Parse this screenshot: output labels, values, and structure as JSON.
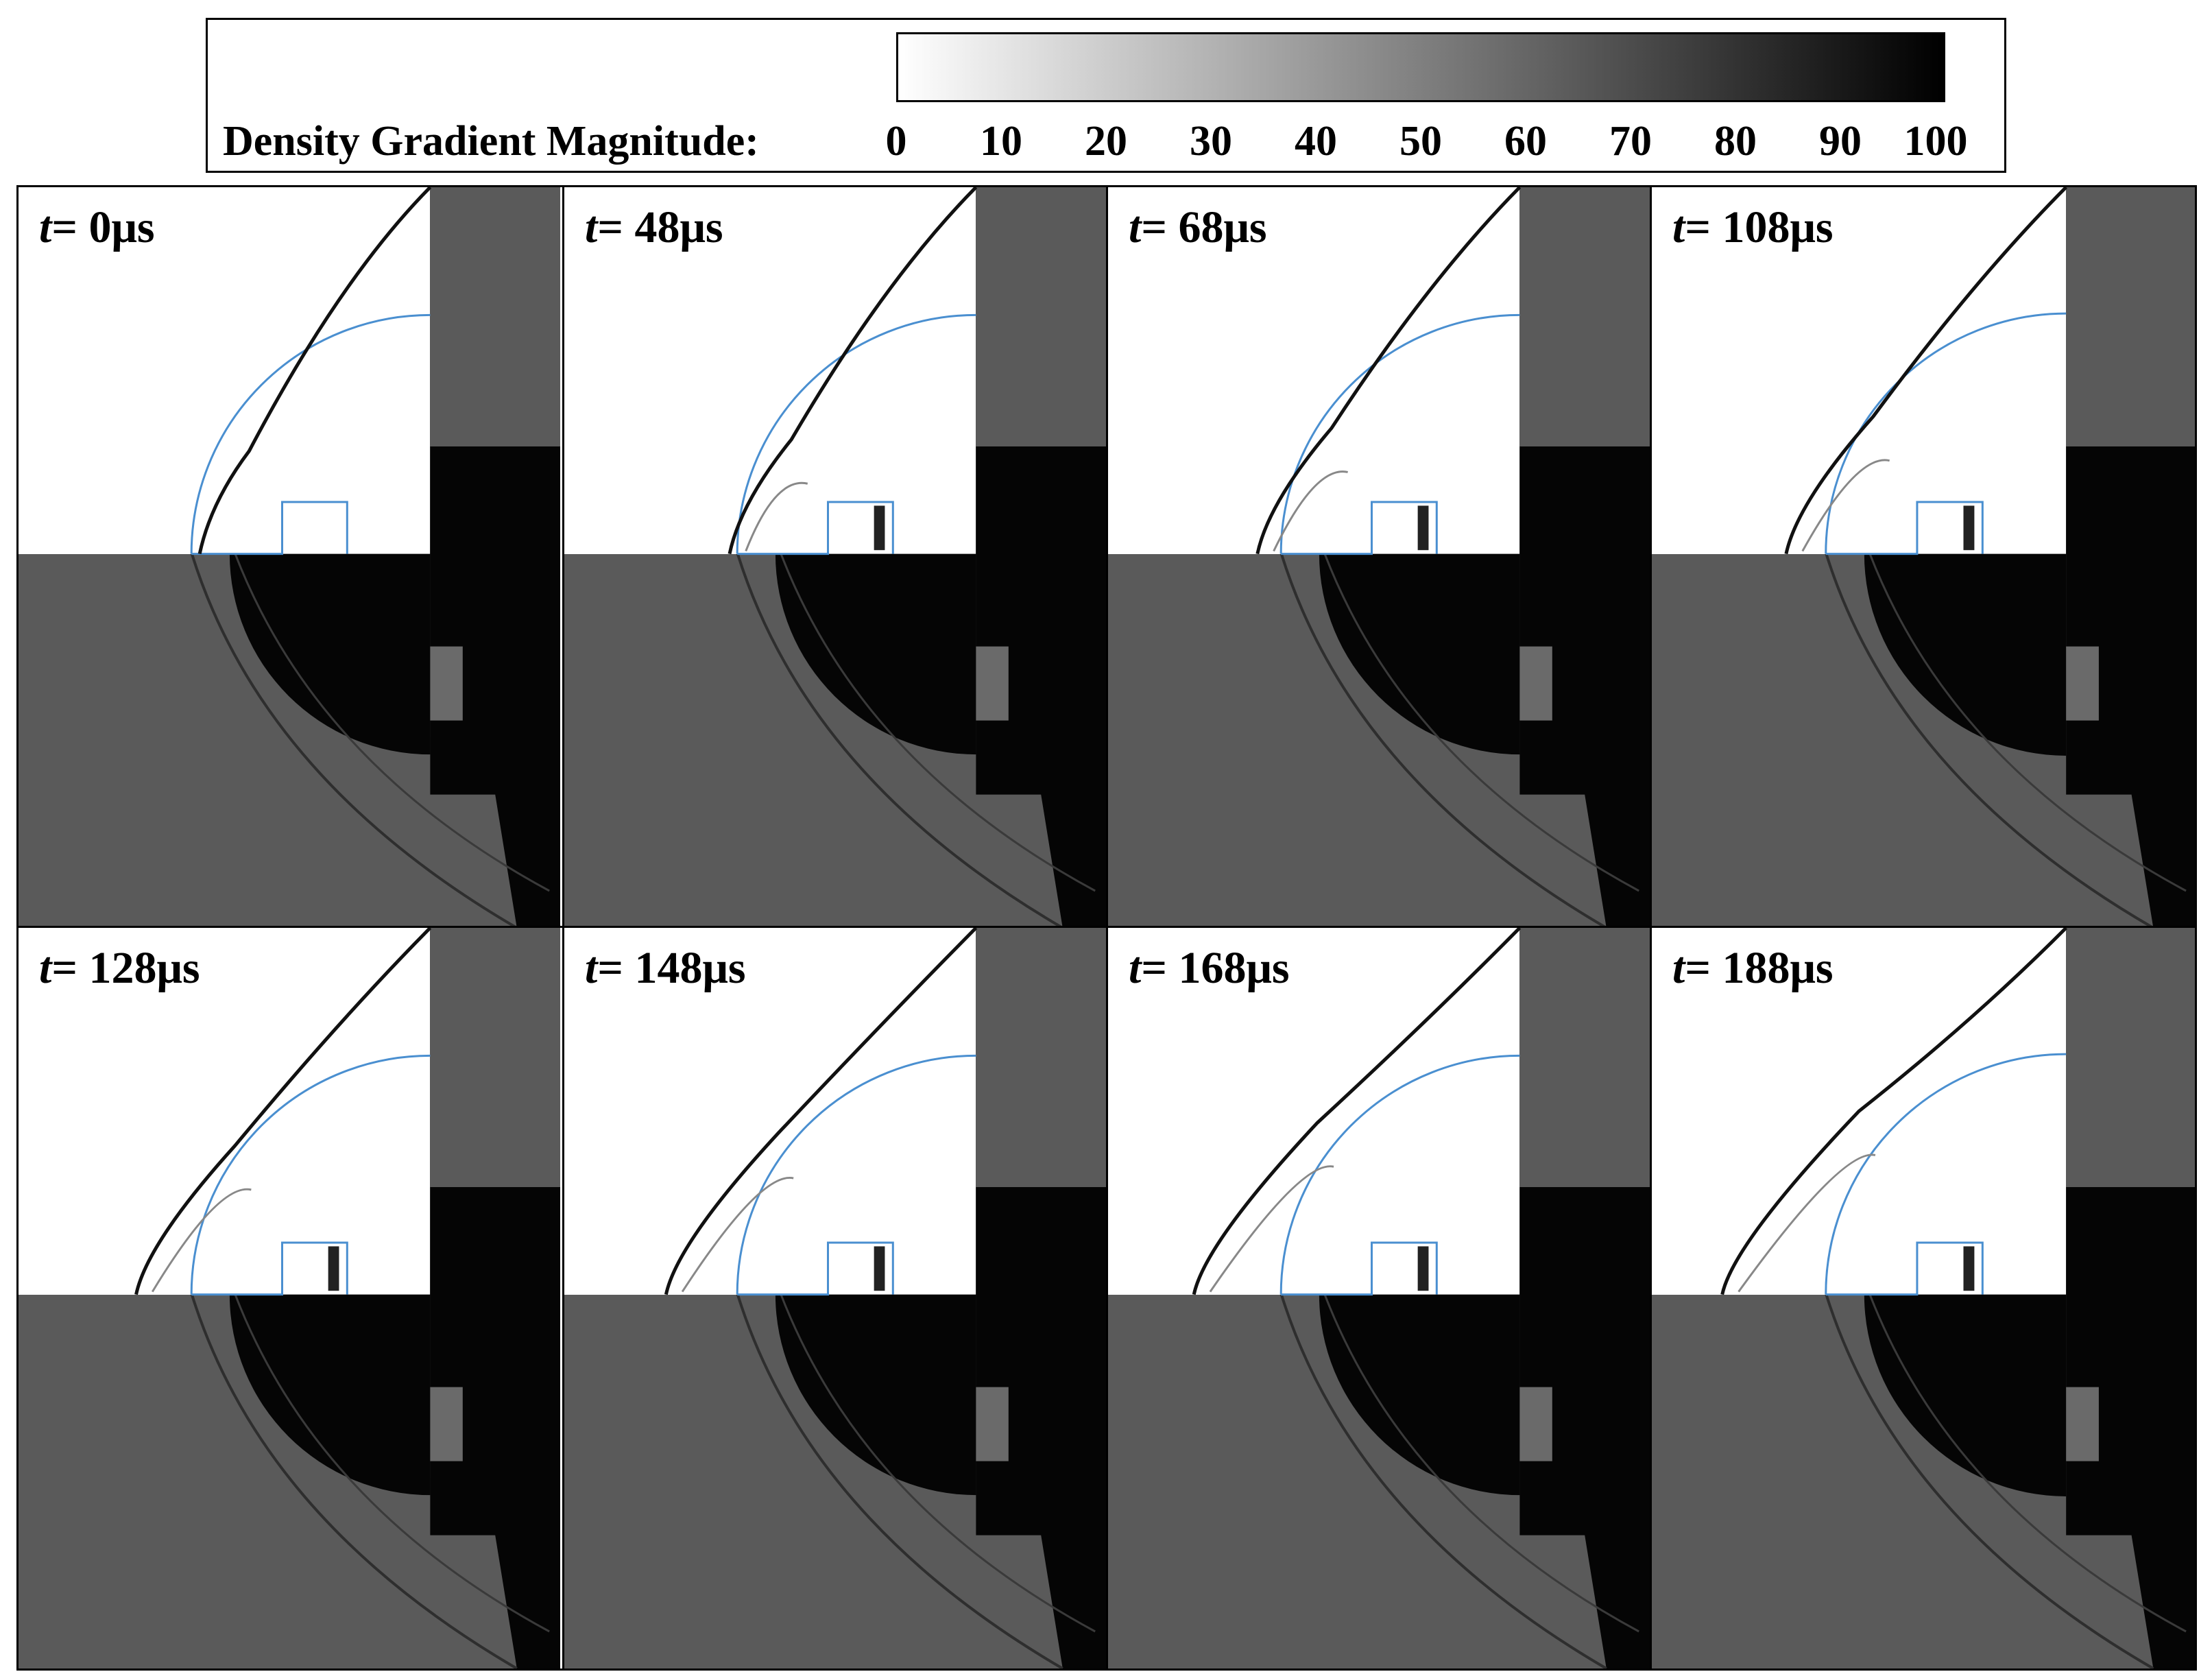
{
  "legend": {
    "label": "Density Gradient Magnitude:",
    "range": [
      0,
      100
    ],
    "ticks": [
      "0",
      "10",
      "20",
      "30",
      "40",
      "50",
      "60",
      "70",
      "80",
      "90",
      "100"
    ],
    "color_low": "#ffffff",
    "color_high": "#000000"
  },
  "colors": {
    "simulation_outline": "#4a8fd0",
    "experiment_background": "#5a5a5a",
    "shadow": "#050505"
  },
  "panels": [
    {
      "t_symbol": "t",
      "t_value": "= 0μs"
    },
    {
      "t_symbol": "t",
      "t_value": "= 48μs"
    },
    {
      "t_symbol": "t",
      "t_value": "= 68μs"
    },
    {
      "t_symbol": "t",
      "t_value": "= 108μs"
    },
    {
      "t_symbol": "t",
      "t_value": "= 128μs"
    },
    {
      "t_symbol": "t",
      "t_value": "= 148μs"
    },
    {
      "t_symbol": "t",
      "t_value": "= 168μs"
    },
    {
      "t_symbol": "t",
      "t_value": "= 188μs"
    }
  ]
}
